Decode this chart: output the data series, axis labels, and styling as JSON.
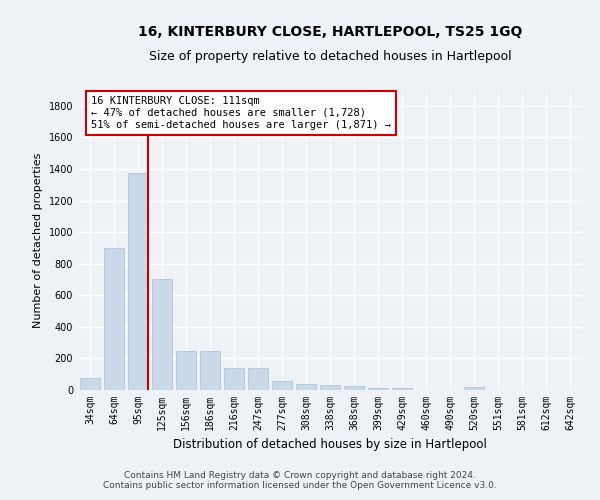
{
  "title": "16, KINTERBURY CLOSE, HARTLEPOOL, TS25 1GQ",
  "subtitle": "Size of property relative to detached houses in Hartlepool",
  "xlabel": "Distribution of detached houses by size in Hartlepool",
  "ylabel": "Number of detached properties",
  "categories": [
    "34sqm",
    "64sqm",
    "95sqm",
    "125sqm",
    "156sqm",
    "186sqm",
    "216sqm",
    "247sqm",
    "277sqm",
    "308sqm",
    "338sqm",
    "368sqm",
    "399sqm",
    "429sqm",
    "460sqm",
    "490sqm",
    "520sqm",
    "551sqm",
    "581sqm",
    "612sqm",
    "642sqm"
  ],
  "values": [
    75,
    900,
    1375,
    700,
    245,
    245,
    140,
    140,
    60,
    40,
    30,
    25,
    10,
    10,
    0,
    0,
    20,
    0,
    0,
    0,
    0
  ],
  "bar_color": "#c9d9ea",
  "bar_edgecolor": "#a8c0d6",
  "vline_color": "#cc0000",
  "annotation_text": "16 KINTERBURY CLOSE: 111sqm\n← 47% of detached houses are smaller (1,728)\n51% of semi-detached houses are larger (1,871) →",
  "annotation_box_facecolor": "#ffffff",
  "annotation_box_edgecolor": "#cc0000",
  "ylim": [
    0,
    1900
  ],
  "yticks": [
    0,
    200,
    400,
    600,
    800,
    1000,
    1200,
    1400,
    1600,
    1800
  ],
  "footer_line1": "Contains HM Land Registry data © Crown copyright and database right 2024.",
  "footer_line2": "Contains public sector information licensed under the Open Government Licence v3.0.",
  "background_color": "#eef2f7",
  "plot_bg_color": "#eef2f7",
  "grid_color": "#ffffff",
  "title_fontsize": 10,
  "subtitle_fontsize": 9,
  "tick_fontsize": 7,
  "ylabel_fontsize": 8,
  "xlabel_fontsize": 8.5,
  "footer_fontsize": 6.5,
  "annotation_fontsize": 7.5
}
